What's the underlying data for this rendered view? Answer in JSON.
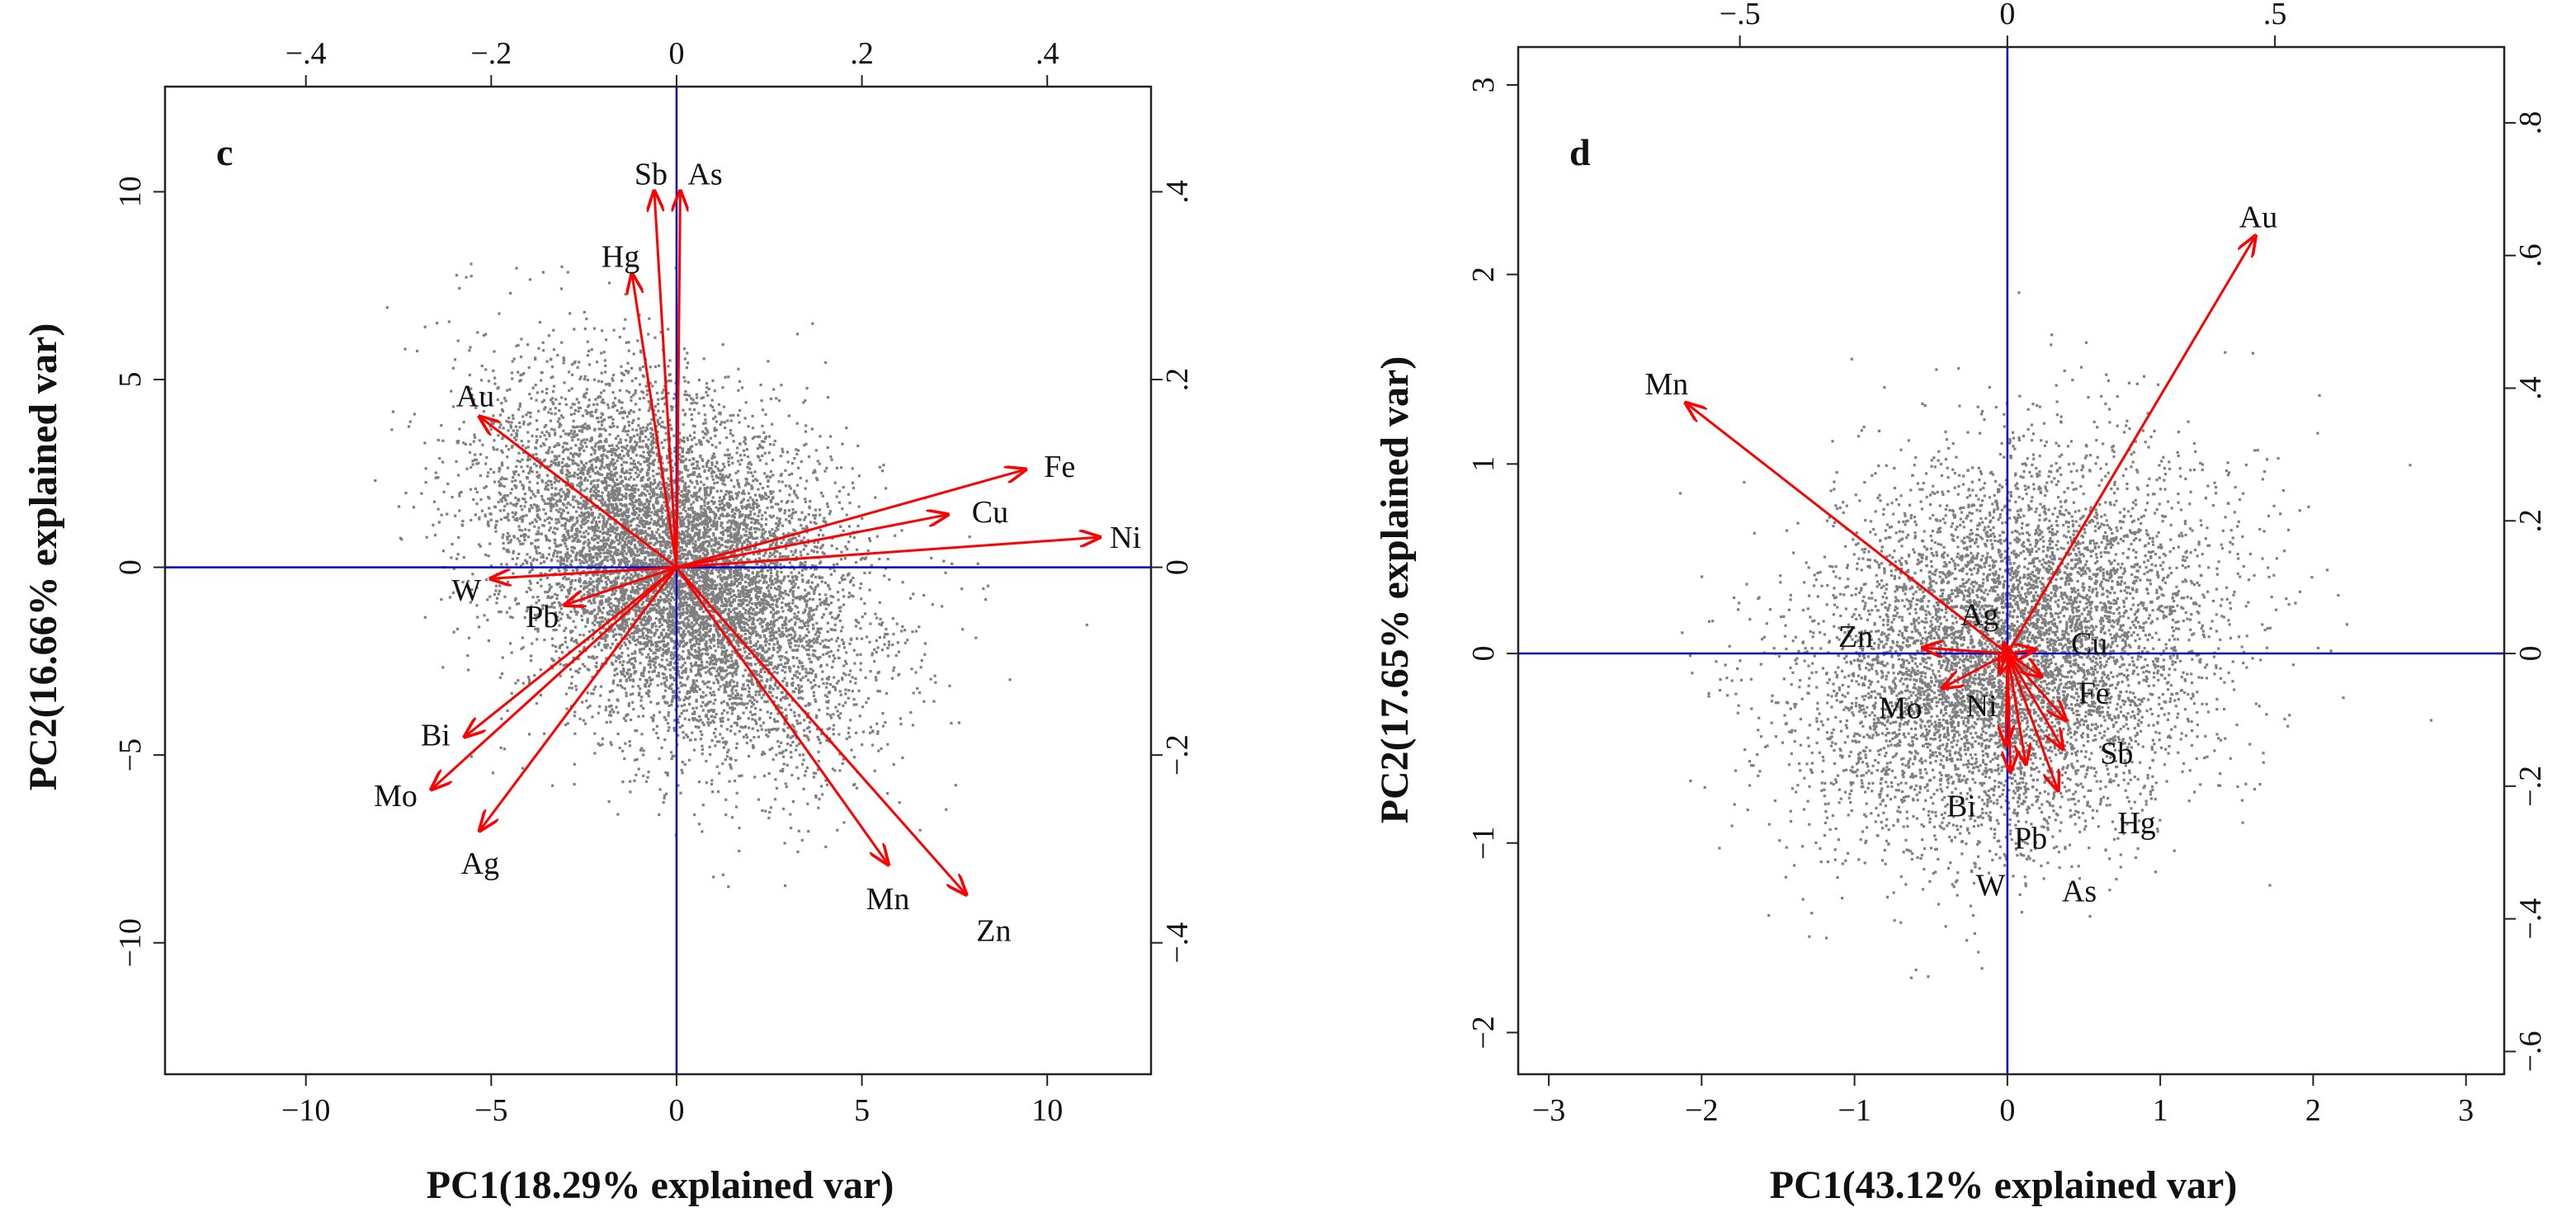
{
  "chart_data": [
    {
      "type": "scatter",
      "panel_label": "c",
      "xlabel": "PC1(18.29% explained var)",
      "ylabel": "PC2(16.66% explained var)",
      "xlim": [
        -13.8,
        12.8
      ],
      "ylim": [
        -13.5,
        12.8
      ],
      "bottom_ticks": [
        -10,
        -5,
        0,
        5,
        10
      ],
      "left_ticks": [
        -10,
        -5,
        0,
        5,
        10
      ],
      "top_ticks": [
        -0.4,
        -0.2,
        0,
        0.2,
        0.4
      ],
      "right_ticks": [
        -0.4,
        -0.2,
        0,
        0.2,
        0.4
      ],
      "loading_scale": 25,
      "scores": {
        "n": 9000,
        "sd_x": 2.4,
        "sd_y": 2.4,
        "correlation": -0.4,
        "color": "#7f7f7f",
        "seed": 11
      },
      "reference_lines_color": "#0000cc",
      "vector_color": "#ff0000",
      "vectors": [
        {
          "name": "Sb",
          "x": -0.6,
          "y": 10.0
        },
        {
          "name": "As",
          "x": 0.1,
          "y": 10.0
        },
        {
          "name": "Hg",
          "x": -1.2,
          "y": 7.8
        },
        {
          "name": "Au",
          "x": -5.3,
          "y": 4.0
        },
        {
          "name": "Fe",
          "x": 9.4,
          "y": 2.6
        },
        {
          "name": "Cu",
          "x": 7.3,
          "y": 1.4
        },
        {
          "name": "Ni",
          "x": 11.4,
          "y": 0.8
        },
        {
          "name": "W",
          "x": -5.0,
          "y": -0.3
        },
        {
          "name": "Pb",
          "x": -3.0,
          "y": -1.0
        },
        {
          "name": "Bi",
          "x": -5.7,
          "y": -4.5
        },
        {
          "name": "Mo",
          "x": -6.6,
          "y": -5.9
        },
        {
          "name": "Ag",
          "x": -5.3,
          "y": -7.0
        },
        {
          "name": "Mn",
          "x": 5.7,
          "y": -7.9
        },
        {
          "name": "Zn",
          "x": 7.8,
          "y": -8.7
        }
      ]
    },
    {
      "type": "scatter",
      "panel_label": "d",
      "xlabel": "PC1(43.12% explained var)",
      "ylabel": "PC2(17.65% explained var)",
      "xlim": [
        -3.2,
        3.25
      ],
      "ylim": [
        -2.22,
        3.2
      ],
      "bottom_ticks": [
        -3,
        -2,
        -1,
        0,
        1,
        2,
        3
      ],
      "left_ticks": [
        -2,
        -1,
        0,
        1,
        2,
        3
      ],
      "top_ticks": [
        -0.5,
        0,
        0.5
      ],
      "right_ticks": [
        -0.6,
        -0.4,
        -0.2,
        0,
        0.2,
        0.4,
        0.6,
        0.8
      ],
      "loading_scale": 3.5,
      "scores": {
        "n": 7000,
        "sd_x": 0.65,
        "sd_y": 0.5,
        "correlation": 0.2,
        "color": "#7f7f7f",
        "seed": 29
      },
      "reference_lines_color": "#0000cc",
      "vector_color": "#ff0000",
      "vectors": [
        {
          "name": "Au",
          "x": 1.62,
          "y": 2.2
        },
        {
          "name": "Mn",
          "x": -2.1,
          "y": 1.32
        },
        {
          "name": "Ag",
          "x": -0.02,
          "y": 0.05
        },
        {
          "name": "Cu",
          "x": 0.18,
          "y": 0.02
        },
        {
          "name": "Zn",
          "x": -0.55,
          "y": 0.03
        },
        {
          "name": "Fe",
          "x": 0.22,
          "y": -0.12
        },
        {
          "name": "Mo",
          "x": -0.42,
          "y": -0.18
        },
        {
          "name": "Ni",
          "x": -0.05,
          "y": -0.1
        },
        {
          "name": "Sb",
          "x": 0.38,
          "y": -0.35
        },
        {
          "name": "Bi",
          "x": -0.01,
          "y": -0.48
        },
        {
          "name": "Hg",
          "x": 0.36,
          "y": -0.5
        },
        {
          "name": "Pb",
          "x": 0.12,
          "y": -0.58
        },
        {
          "name": "As",
          "x": 0.33,
          "y": -0.72
        },
        {
          "name": "W",
          "x": 0.02,
          "y": -0.62
        }
      ]
    }
  ]
}
